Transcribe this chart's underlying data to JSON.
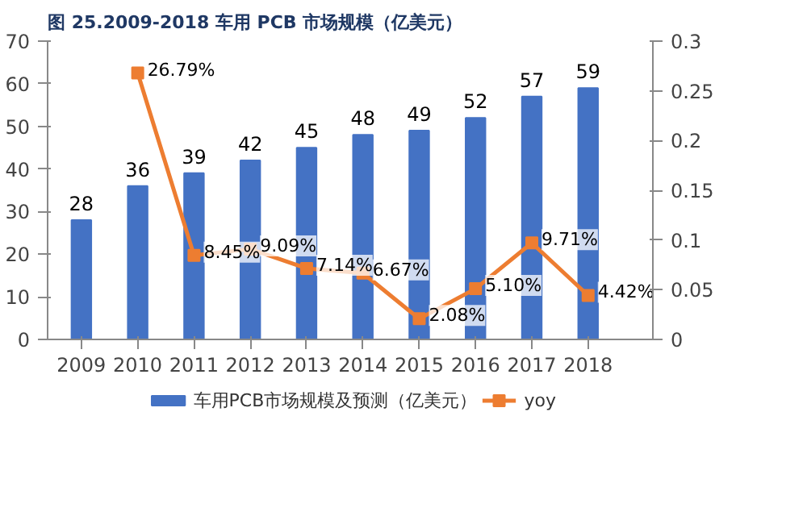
{
  "chart_data": {
    "type": "bar",
    "title": "图 25.2009-2018 车用 PCB 市场规模（亿美元）",
    "categories": [
      "2009",
      "2010",
      "2011",
      "2012",
      "2013",
      "2014",
      "2015",
      "2016",
      "2017",
      "2018"
    ],
    "series": [
      {
        "name": "车用PCB市场规模及预测（亿美元）",
        "color": "#4472c4",
        "values": [
          28,
          36,
          39,
          42,
          45,
          48,
          49,
          52,
          57,
          59
        ],
        "data_labels": true
      },
      {
        "name": "yoy",
        "type": "line",
        "axis": "y2",
        "color": "#ed7d31",
        "marker": "square",
        "values": [
          null,
          0.2679,
          0.0845,
          0.0909,
          0.0714,
          0.0667,
          0.0208,
          0.051,
          0.0971,
          0.0442
        ],
        "value_labels": [
          null,
          "26.79%",
          "8.45%",
          "9.09%",
          "7.14%",
          "6.67%",
          "2.08%",
          "5.10%",
          "9.71%",
          "4.42%"
        ]
      }
    ],
    "ylim": [
      0,
      70
    ],
    "yticks": [
      0,
      10,
      20,
      30,
      40,
      50,
      60,
      70
    ],
    "y2lim": [
      0,
      0.3
    ],
    "y2ticks": [
      0,
      0.05,
      0.1,
      0.15,
      0.2,
      0.25,
      0.3
    ],
    "grid": false,
    "legend": "bottom"
  }
}
